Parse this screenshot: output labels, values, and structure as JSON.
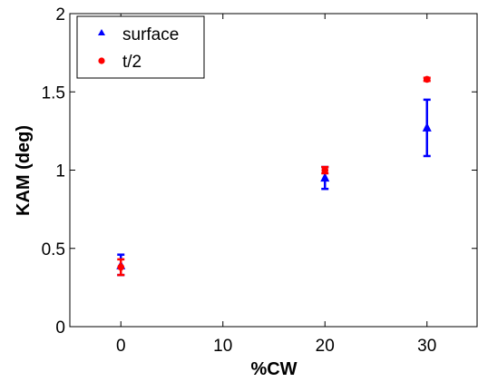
{
  "chart_data": {
    "type": "scatter",
    "title": "",
    "xlabel": "%CW",
    "ylabel": "KAM (deg)",
    "xlim": [
      -5,
      35
    ],
    "ylim": [
      0,
      2
    ],
    "xticks": [
      0,
      10,
      20,
      30
    ],
    "yticks": [
      0,
      0.5,
      1,
      1.5,
      2
    ],
    "xtick_labels": [
      "0",
      "10",
      "20",
      "30"
    ],
    "ytick_labels": [
      "0",
      "0.5",
      "1",
      "1.5",
      "2"
    ],
    "grid": false,
    "legend_position": "top-left",
    "series": [
      {
        "name": "surface",
        "marker": "triangle",
        "color": "#0000ff",
        "points": [
          {
            "x": 0,
            "y": 0.39,
            "err_low": 0.33,
            "err_high": 0.46
          },
          {
            "x": 20,
            "y": 0.95,
            "err_low": 0.88,
            "err_high": 1.02
          },
          {
            "x": 30,
            "y": 1.27,
            "err_low": 1.09,
            "err_high": 1.45
          }
        ]
      },
      {
        "name": "t/2",
        "marker": "circle",
        "color": "#ff0000",
        "points": [
          {
            "x": 0,
            "y": 0.38,
            "err_low": 0.33,
            "err_high": 0.43
          },
          {
            "x": 20,
            "y": 1.0,
            "err_low": 0.98,
            "err_high": 1.02
          },
          {
            "x": 30,
            "y": 1.58,
            "err_low": 1.57,
            "err_high": 1.59
          }
        ]
      }
    ]
  }
}
